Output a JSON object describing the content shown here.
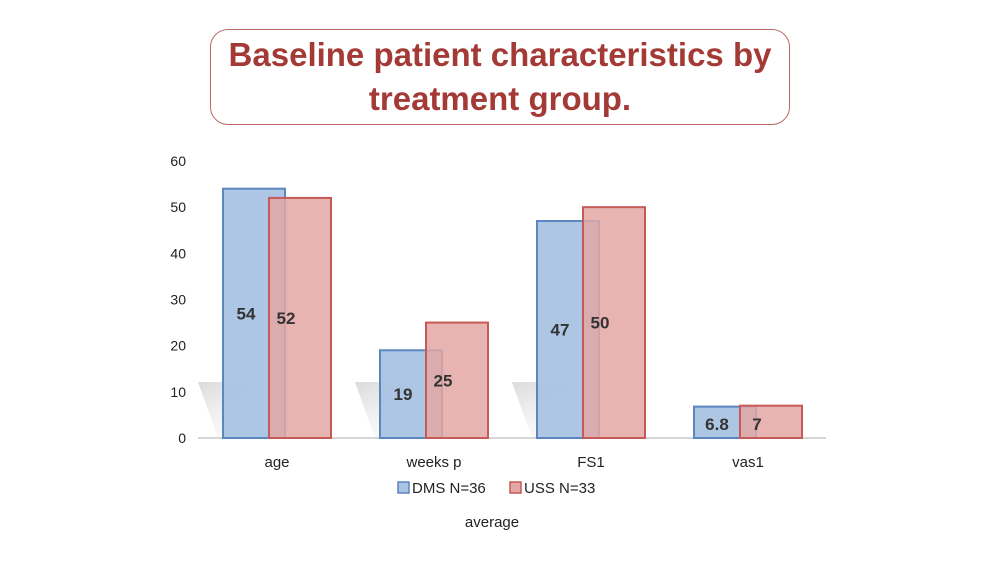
{
  "slide": {
    "title": "Baseline patient characteristics by treatment group."
  },
  "colors": {
    "title": "#a33a36",
    "series_1_fill": "#a9c3e3",
    "series_1_stroke": "#5b86bf",
    "series_2_fill": "#e3a7a5",
    "series_2_stroke": "#c65a57"
  },
  "chart_data": {
    "type": "bar",
    "title": "",
    "xlabel": "average",
    "ylabel": "",
    "ylim": [
      0,
      60
    ],
    "yticks": [
      0,
      10,
      20,
      30,
      40,
      50,
      60
    ],
    "categories": [
      "age",
      "weeks p",
      "FS1",
      "vas1"
    ],
    "series": [
      {
        "name": "DMS N=36",
        "values": [
          54,
          19,
          47,
          6.8
        ]
      },
      {
        "name": "USS N=33",
        "values": [
          52,
          25,
          50,
          7
        ]
      }
    ],
    "data_labels": [
      [
        "54",
        "19",
        "47",
        "6.8"
      ],
      [
        "52",
        "25",
        "50",
        "7"
      ]
    ],
    "legend_position": "bottom",
    "grid": false
  }
}
